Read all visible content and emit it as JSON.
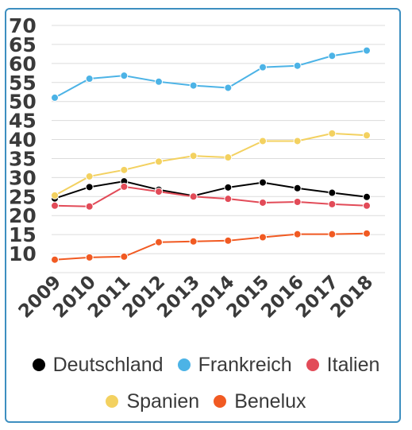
{
  "chart_data": {
    "type": "line",
    "categories": [
      "2009",
      "2010",
      "2011",
      "2012",
      "2013",
      "2014",
      "2015",
      "2016",
      "2017",
      "2018"
    ],
    "y_ticks": [
      "10",
      "15",
      "20",
      "25",
      "30",
      "35",
      "40",
      "45",
      "50",
      "55",
      "60",
      "65",
      "70"
    ],
    "ylim": [
      5,
      70
    ],
    "grid": true,
    "legend_position": "bottom",
    "series": [
      {
        "name": "Deutschland",
        "color": "#000000",
        "values": [
          24.5,
          27.5,
          29,
          26.8,
          25.2,
          27.4,
          28.7,
          27.2,
          26,
          24.9
        ]
      },
      {
        "name": "Frankreich",
        "color": "#4cb3e6",
        "values": [
          51,
          56,
          56.8,
          55.2,
          54.2,
          53.6,
          59,
          59.4,
          62,
          63.4
        ]
      },
      {
        "name": "Italien",
        "color": "#e24b58",
        "values": [
          22.6,
          22.4,
          27.6,
          26.3,
          25,
          24.4,
          23.4,
          23.6,
          23,
          22.6
        ]
      },
      {
        "name": "Spanien",
        "color": "#f3d160",
        "values": [
          25.3,
          30.3,
          32,
          34.2,
          35.7,
          35.3,
          39.6,
          39.6,
          41.6,
          41.1
        ]
      },
      {
        "name": "Benelux",
        "color": "#f15a22",
        "values": [
          8.4,
          9,
          9.2,
          13,
          13.2,
          13.4,
          14.3,
          15.1,
          15.1,
          15.3
        ]
      }
    ]
  },
  "legend": {
    "row1": [
      {
        "label": "Deutschland",
        "color": "#000000",
        "icon": "dot"
      },
      {
        "label": "Frankreich",
        "color": "#4cb3e6",
        "icon": "dot"
      },
      {
        "label": "Italien",
        "color": "#e24b58",
        "icon": "dot"
      }
    ],
    "row2": [
      {
        "label": "Spanien",
        "color": "#f3d160",
        "icon": "dot"
      },
      {
        "label": "Benelux",
        "color": "#f15a22",
        "icon": "dot"
      }
    ]
  }
}
